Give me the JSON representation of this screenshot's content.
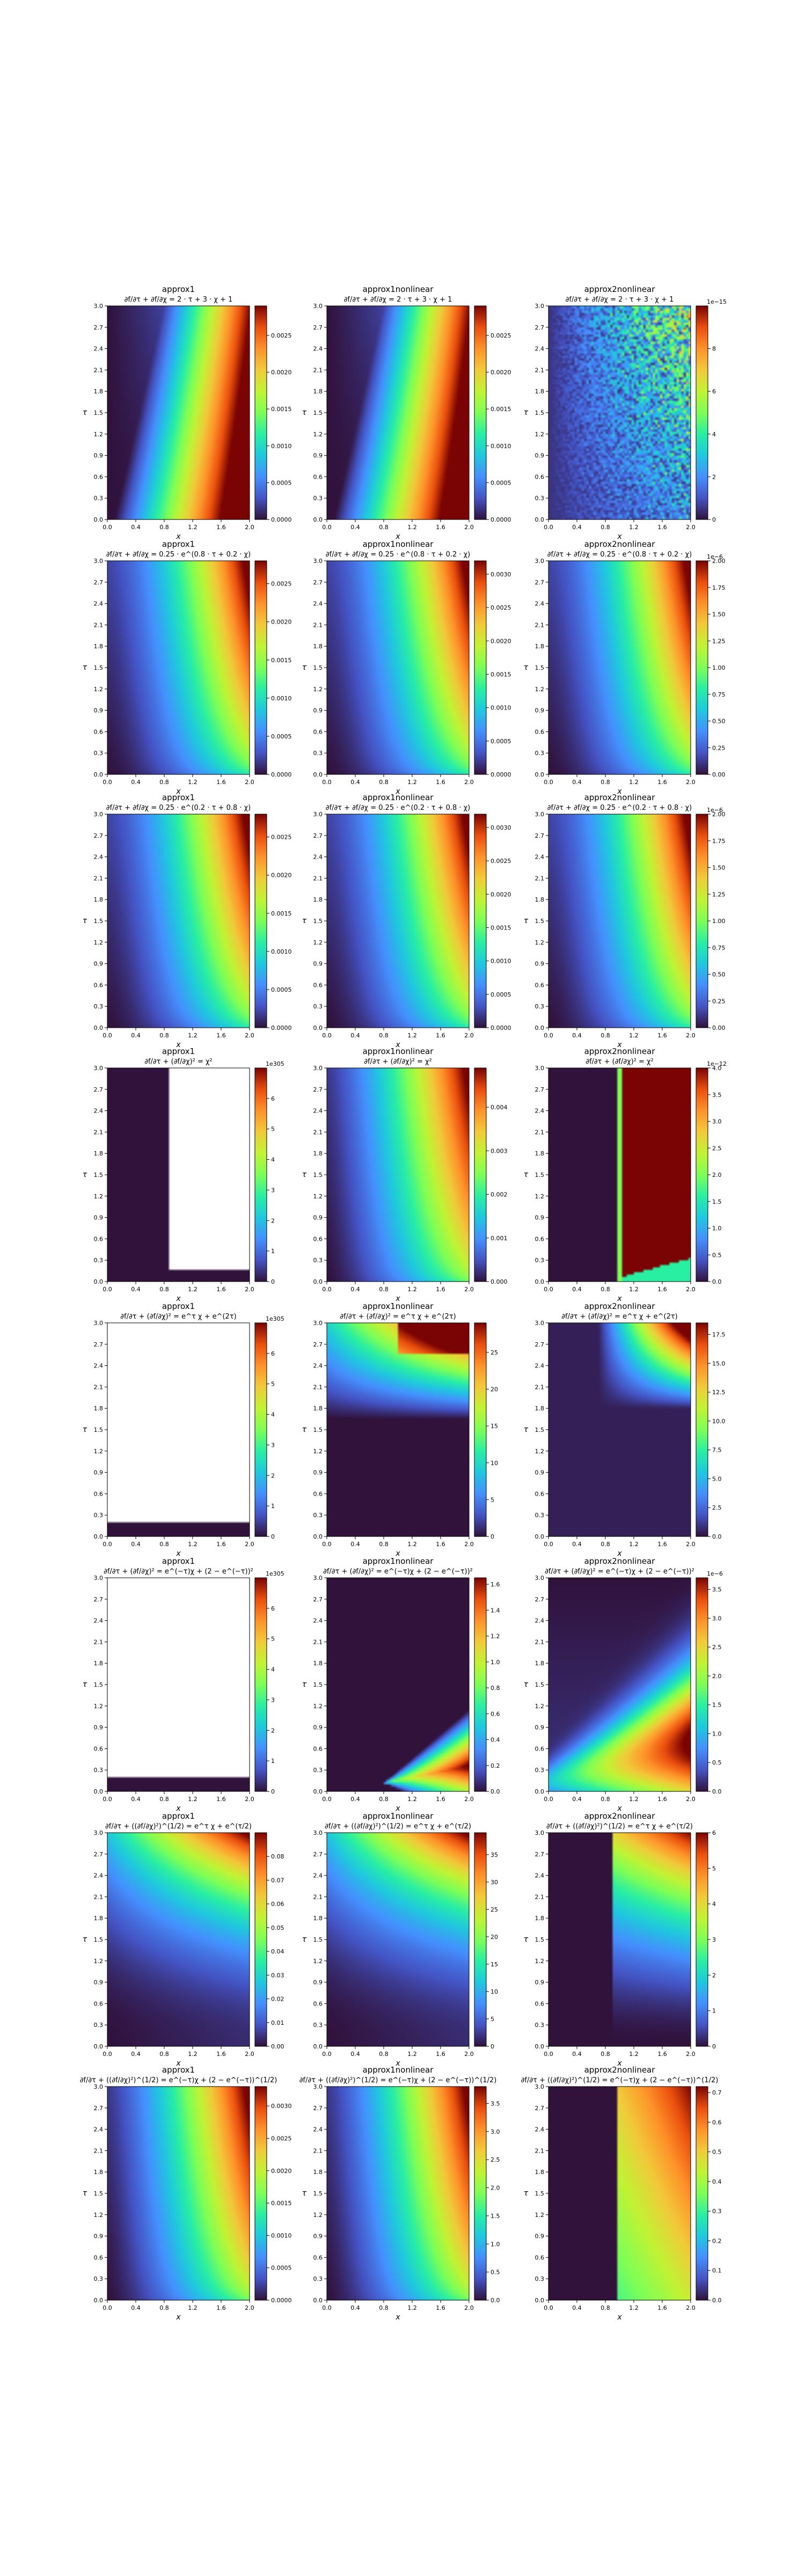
{
  "chart_data": {
    "type": "heatmap",
    "layout": "8 rows x 3 columns of heatmaps with colorbars",
    "colormap": "turbo",
    "x_axis": {
      "label": "x",
      "range": [
        0.0,
        2.0
      ],
      "ticks": [
        "0.0",
        "0.4",
        "0.8",
        "1.2",
        "1.6",
        "2.0"
      ]
    },
    "y_axis": {
      "label": "τ",
      "range": [
        0.0,
        3.0
      ],
      "ticks": [
        "0.0",
        "0.3",
        "0.6",
        "0.9",
        "1.2",
        "1.5",
        "1.8",
        "2.1",
        "2.4",
        "2.7",
        "3.0"
      ]
    },
    "panels": [
      {
        "row": 0,
        "col": 0,
        "title": "approx1",
        "subtitle": "∂f/∂τ + ∂f/∂χ = 2 · τ + 3 · χ + 1",
        "pattern": "wedge",
        "cb_ticks": [
          "0.0000",
          "0.0005",
          "0.0010",
          "0.0015",
          "0.0020",
          "0.0025"
        ],
        "cb_max": 0.0029,
        "cb_exp": ""
      },
      {
        "row": 0,
        "col": 1,
        "title": "approx1nonlinear",
        "subtitle": "∂f/∂τ + ∂f/∂χ = 2 · τ + 3 · χ + 1",
        "pattern": "wedge",
        "cb_ticks": [
          "0.0000",
          "0.0005",
          "0.0010",
          "0.0015",
          "0.0020",
          "0.0025"
        ],
        "cb_max": 0.0029,
        "cb_exp": ""
      },
      {
        "row": 0,
        "col": 2,
        "title": "approx2nonlinear",
        "subtitle": "∂f/∂τ + ∂f/∂χ = 2 · τ + 3 · χ + 1",
        "pattern": "noise",
        "cb_ticks": [
          "0",
          "2",
          "4",
          "6",
          "8"
        ],
        "cb_max": 10.0,
        "cb_exp": "1e−15"
      },
      {
        "row": 1,
        "col": 0,
        "title": "approx1",
        "subtitle": "∂f/∂τ + ∂f/∂χ = 0.25 · e^(0.8 · τ + 0.2 · χ)",
        "pattern": "smooth",
        "cb_ticks": [
          "0.0000",
          "0.0005",
          "0.0010",
          "0.0015",
          "0.0020",
          "0.0025"
        ],
        "cb_max": 0.0028,
        "cb_exp": ""
      },
      {
        "row": 1,
        "col": 1,
        "title": "approx1nonlinear",
        "subtitle": "∂f/∂τ + ∂f/∂χ = 0.25 · e^(0.8 · τ + 0.2 · χ)",
        "pattern": "smooth",
        "cb_ticks": [
          "0.0000",
          "0.0005",
          "0.0010",
          "0.0015",
          "0.0020",
          "0.0025",
          "0.0030"
        ],
        "cb_max": 0.0032,
        "cb_exp": ""
      },
      {
        "row": 1,
        "col": 2,
        "title": "approx2nonlinear",
        "subtitle": "∂f/∂τ + ∂f/∂χ = 0.25 · e^(0.8 · τ + 0.2 · χ)",
        "pattern": "smooth",
        "cb_ticks": [
          "0.00",
          "0.25",
          "0.50",
          "0.75",
          "1.00",
          "1.25",
          "1.50",
          "1.75",
          "2.00"
        ],
        "cb_max": 2.0,
        "cb_exp": "1e−6"
      },
      {
        "row": 2,
        "col": 0,
        "title": "approx1",
        "subtitle": "∂f/∂τ + ∂f/∂χ = 0.25 · e^(0.2 · τ + 0.8 · χ)",
        "pattern": "smooth",
        "cb_ticks": [
          "0.0000",
          "0.0005",
          "0.0010",
          "0.0015",
          "0.0020",
          "0.0025"
        ],
        "cb_max": 0.0028,
        "cb_exp": ""
      },
      {
        "row": 2,
        "col": 1,
        "title": "approx1nonlinear",
        "subtitle": "∂f/∂τ + ∂f/∂χ = 0.25 · e^(0.2 · τ + 0.8 · χ)",
        "pattern": "smooth",
        "cb_ticks": [
          "0.0000",
          "0.0005",
          "0.0010",
          "0.0015",
          "0.0020",
          "0.0025",
          "0.0030"
        ],
        "cb_max": 0.0032,
        "cb_exp": ""
      },
      {
        "row": 2,
        "col": 2,
        "title": "approx2nonlinear",
        "subtitle": "∂f/∂τ + ∂f/∂χ = 0.25 · e^(0.2 · τ + 0.8 · χ)",
        "pattern": "smooth",
        "cb_ticks": [
          "0.00",
          "0.25",
          "0.50",
          "0.75",
          "1.00",
          "1.25",
          "1.50",
          "1.75",
          "2.00"
        ],
        "cb_max": 2.0,
        "cb_exp": "1e−6"
      },
      {
        "row": 3,
        "col": 0,
        "title": "approx1",
        "subtitle": "∂f/∂τ + (∂f/∂χ)² = χ²",
        "pattern": "blowup-right",
        "cb_ticks": [
          "0",
          "1",
          "2",
          "3",
          "4",
          "5",
          "6"
        ],
        "cb_max": 7.0,
        "cb_exp": "1e305"
      },
      {
        "row": 3,
        "col": 1,
        "title": "approx1nonlinear",
        "subtitle": "∂f/∂τ + (∂f/∂χ)² = χ²",
        "pattern": "smooth-strong",
        "cb_ticks": [
          "0.000",
          "0.001",
          "0.002",
          "0.003",
          "0.004"
        ],
        "cb_max": 0.0049,
        "cb_exp": ""
      },
      {
        "row": 3,
        "col": 2,
        "title": "approx2nonlinear",
        "subtitle": "∂f/∂τ + (∂f/∂χ)² = χ²",
        "pattern": "step",
        "cb_ticks": [
          "0.0",
          "0.5",
          "1.0",
          "1.5",
          "2.0",
          "2.5",
          "3.0",
          "3.5",
          "4.0"
        ],
        "cb_max": 4.0,
        "cb_exp": "1e−12"
      },
      {
        "row": 4,
        "col": 0,
        "title": "approx1",
        "subtitle": "∂f/∂τ + (∂f/∂χ)² = e^τ χ + e^(2τ)",
        "pattern": "blowup-top",
        "cb_ticks": [
          "0",
          "1",
          "2",
          "3",
          "4",
          "5",
          "6"
        ],
        "cb_max": 7.0,
        "cb_exp": "1e305"
      },
      {
        "row": 4,
        "col": 1,
        "title": "approx1nonlinear",
        "subtitle": "∂f/∂τ + (∂f/∂χ)² = e^τ χ + e^(2τ)",
        "pattern": "top-fan",
        "cb_ticks": [
          "0",
          "5",
          "10",
          "15",
          "20",
          "25"
        ],
        "cb_max": 29.0,
        "cb_exp": ""
      },
      {
        "row": 4,
        "col": 2,
        "title": "approx2nonlinear",
        "subtitle": "∂f/∂τ + (∂f/∂χ)² = e^τ χ + e^(2τ)",
        "pattern": "top-fan2",
        "cb_ticks": [
          "0.0",
          "2.5",
          "5.0",
          "7.5",
          "10.0",
          "12.5",
          "15.0",
          "17.5"
        ],
        "cb_max": 18.5,
        "cb_exp": ""
      },
      {
        "row": 5,
        "col": 0,
        "title": "approx1",
        "subtitle": "∂f/∂τ + (∂f/∂χ)² = e^(−τ)χ + (2 − e^(−τ))²",
        "pattern": "blowup-top",
        "cb_ticks": [
          "0",
          "1",
          "2",
          "3",
          "4",
          "5",
          "6"
        ],
        "cb_max": 7.0,
        "cb_exp": "1e305"
      },
      {
        "row": 5,
        "col": 1,
        "title": "approx1nonlinear",
        "subtitle": "∂f/∂τ + (∂f/∂χ)² = e^(−τ)χ + (2 − e^(−τ))²",
        "pattern": "cone",
        "cb_ticks": [
          "0.0",
          "0.2",
          "0.4",
          "0.6",
          "0.8",
          "1.0",
          "1.2",
          "1.4",
          "1.6"
        ],
        "cb_max": 1.65,
        "cb_exp": ""
      },
      {
        "row": 5,
        "col": 2,
        "title": "approx2nonlinear",
        "subtitle": "∂f/∂τ + (∂f/∂χ)² = e^(−τ)χ + (2 − e^(−τ))²",
        "pattern": "cone-wide",
        "cb_ticks": [
          "0.0",
          "0.5",
          "1.0",
          "1.5",
          "2.0",
          "2.5",
          "3.0",
          "3.5"
        ],
        "cb_max": 3.7,
        "cb_exp": "1e−6"
      },
      {
        "row": 6,
        "col": 0,
        "title": "approx1",
        "subtitle": "∂f/∂τ + ((∂f/∂χ)²)^(1/2) = e^τ χ + e^(τ/2)",
        "pattern": "corner",
        "cb_ticks": [
          "0.00",
          "0.01",
          "0.02",
          "0.03",
          "0.04",
          "0.05",
          "0.06",
          "0.07",
          "0.08"
        ],
        "cb_max": 0.09,
        "cb_exp": ""
      },
      {
        "row": 6,
        "col": 1,
        "title": "approx1nonlinear",
        "subtitle": "∂f/∂τ + ((∂f/∂χ)²)^(1/2) = e^τ χ + e^(τ/2)",
        "pattern": "corner",
        "cb_ticks": [
          "0",
          "5",
          "10",
          "15",
          "20",
          "25",
          "30",
          "35"
        ],
        "cb_max": 39.0,
        "cb_exp": ""
      },
      {
        "row": 6,
        "col": 2,
        "title": "approx2nonlinear",
        "subtitle": "∂f/∂τ + ((∂f/∂χ)²)^(1/2) = e^τ χ + e^(τ/2)",
        "pattern": "corner-step",
        "cb_ticks": [
          "0",
          "1",
          "2",
          "3",
          "4",
          "5",
          "6"
        ],
        "cb_max": 6.0,
        "cb_exp": ""
      },
      {
        "row": 7,
        "col": 0,
        "title": "approx1",
        "subtitle": "∂f/∂τ + ((∂f/∂χ)²)^(1/2) = e^(−τ)χ + (2 − e^(−τ))^(1/2)",
        "pattern": "smooth-strong",
        "cb_ticks": [
          "0.0000",
          "0.0005",
          "0.0010",
          "0.0015",
          "0.0020",
          "0.0025",
          "0.0030"
        ],
        "cb_max": 0.0033,
        "cb_exp": ""
      },
      {
        "row": 7,
        "col": 1,
        "title": "approx1nonlinear",
        "subtitle": "∂f/∂τ + ((∂f/∂χ)²)^(1/2) = e^(−τ)χ + (2 − e^(−τ))^(1/2)",
        "pattern": "smooth-strong",
        "cb_ticks": [
          "0.0",
          "0.5",
          "1.0",
          "1.5",
          "2.0",
          "2.5",
          "3.0",
          "3.5"
        ],
        "cb_max": 3.8,
        "cb_exp": ""
      },
      {
        "row": 7,
        "col": 2,
        "title": "approx2nonlinear",
        "subtitle": "∂f/∂τ + ((∂f/∂χ)²)^(1/2) = e^(−τ)χ + (2 − e^(−τ))^(1/2)",
        "pattern": "step-right",
        "cb_ticks": [
          "0.0",
          "0.1",
          "0.2",
          "0.3",
          "0.4",
          "0.5",
          "0.6",
          "0.7"
        ],
        "cb_max": 0.72,
        "cb_exp": ""
      }
    ]
  }
}
